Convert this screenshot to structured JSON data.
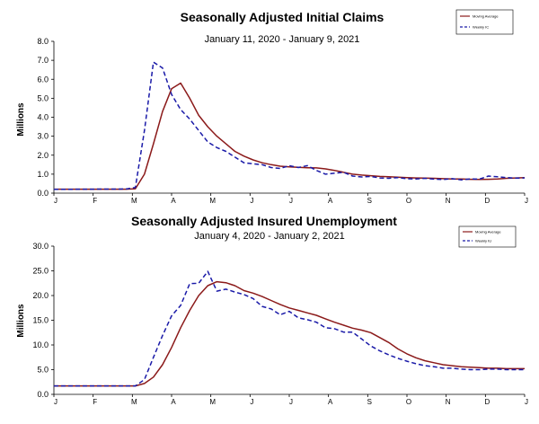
{
  "colors": {
    "moving_average": "#8b1a1a",
    "weekly": "#1a1aa8",
    "axis": "#000000"
  },
  "chart_data": [
    {
      "type": "line",
      "title": "Seasonally Adjusted Initial  Claims",
      "subtitle": "January 11, 2020 - January 9, 2021",
      "ylabel": "Millions",
      "ylim": [
        0,
        8
      ],
      "yticks": [
        "0.0",
        "1.0",
        "2.0",
        "3.0",
        "4.0",
        "5.0",
        "6.0",
        "7.0",
        "8.0"
      ],
      "xlabels": [
        "J",
        "F",
        "M",
        "A",
        "M",
        "J",
        "J",
        "A",
        "S",
        "O",
        "N",
        "D",
        "J"
      ],
      "x": [
        1,
        5,
        9,
        10,
        11,
        12,
        13,
        14,
        15,
        16,
        17,
        18,
        19,
        20,
        21,
        22,
        23,
        24,
        25,
        26,
        27,
        28,
        29,
        30,
        31,
        32,
        33,
        34,
        35,
        36,
        37,
        38,
        39,
        40,
        41,
        42,
        43,
        44,
        45,
        46,
        47,
        48,
        49,
        50,
        51,
        52,
        53
      ],
      "series": [
        {
          "name": "Moving Average",
          "style": "solid",
          "values": [
            0.21,
            0.21,
            0.21,
            0.23,
            1.0,
            2.6,
            4.3,
            5.5,
            5.8,
            5.0,
            4.1,
            3.5,
            3.0,
            2.6,
            2.2,
            1.95,
            1.75,
            1.6,
            1.5,
            1.42,
            1.38,
            1.36,
            1.34,
            1.33,
            1.28,
            1.2,
            1.1,
            1.0,
            0.95,
            0.92,
            0.88,
            0.86,
            0.84,
            0.82,
            0.8,
            0.79,
            0.78,
            0.76,
            0.75,
            0.75,
            0.73,
            0.72,
            0.73,
            0.75,
            0.78,
            0.8,
            0.82
          ]
        },
        {
          "name": "Weekly IC",
          "style": "dashed",
          "values": [
            0.2,
            0.21,
            0.22,
            0.3,
            3.3,
            6.9,
            6.6,
            5.2,
            4.4,
            3.9,
            3.3,
            2.7,
            2.4,
            2.2,
            1.9,
            1.6,
            1.55,
            1.5,
            1.35,
            1.3,
            1.45,
            1.35,
            1.45,
            1.2,
            1.0,
            1.05,
            1.1,
            0.9,
            0.85,
            0.88,
            0.8,
            0.78,
            0.82,
            0.76,
            0.75,
            0.78,
            0.74,
            0.72,
            0.76,
            0.7,
            0.75,
            0.74,
            0.9,
            0.86,
            0.82,
            0.79,
            0.8
          ]
        }
      ],
      "legend": {
        "placement": "top-right"
      }
    },
    {
      "type": "line",
      "title": "Seasonally Adjusted Insured Unemployment",
      "subtitle": "January 4, 2020 - January 2, 2021",
      "ylabel": "Millions",
      "ylim": [
        0,
        30
      ],
      "yticks": [
        "0.0",
        "5.0",
        "10.0",
        "15.0",
        "20.0",
        "25.0",
        "30.0"
      ],
      "xlabels": [
        "J",
        "F",
        "M",
        "A",
        "M",
        "J",
        "J",
        "A",
        "S",
        "O",
        "N",
        "D",
        "J"
      ],
      "x": [
        1,
        5,
        10,
        11,
        12,
        13,
        14,
        15,
        16,
        17,
        18,
        19,
        20,
        21,
        22,
        23,
        24,
        25,
        26,
        27,
        28,
        29,
        30,
        31,
        32,
        33,
        34,
        35,
        36,
        37,
        38,
        39,
        40,
        41,
        42,
        43,
        44,
        45,
        46,
        47,
        48,
        49,
        50,
        51,
        52,
        53
      ],
      "series": [
        {
          "name": "Moving Average",
          "style": "solid",
          "values": [
            1.7,
            1.7,
            1.7,
            2.2,
            3.5,
            6.0,
            9.5,
            13.5,
            17.0,
            20.0,
            22.0,
            22.8,
            22.6,
            22.0,
            21.0,
            20.5,
            19.8,
            19.0,
            18.2,
            17.5,
            17.0,
            16.5,
            16.0,
            15.3,
            14.6,
            14.0,
            13.4,
            13.0,
            12.5,
            11.5,
            10.5,
            9.2,
            8.2,
            7.4,
            6.8,
            6.4,
            6.0,
            5.8,
            5.6,
            5.5,
            5.4,
            5.3,
            5.3,
            5.2,
            5.2,
            5.2
          ]
        },
        {
          "name": "Weekly IU",
          "style": "dashed",
          "values": [
            1.7,
            1.7,
            1.7,
            3.0,
            7.5,
            11.9,
            15.9,
            18.0,
            22.4,
            22.5,
            24.9,
            20.9,
            21.3,
            20.7,
            20.2,
            19.4,
            17.8,
            17.3,
            16.1,
            16.8,
            15.5,
            15.1,
            14.6,
            13.5,
            13.3,
            12.6,
            12.6,
            11.2,
            9.8,
            8.8,
            8.0,
            7.3,
            6.7,
            6.2,
            5.8,
            5.6,
            5.3,
            5.3,
            5.1,
            5.0,
            5.0,
            5.1,
            5.1,
            5.0,
            5.0,
            5.0
          ]
        }
      ],
      "legend": {
        "placement": "top-right"
      }
    }
  ]
}
